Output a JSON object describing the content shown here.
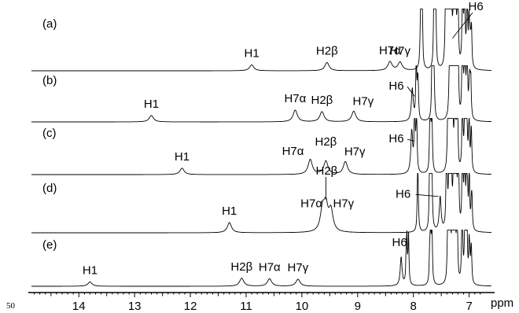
{
  "page_number": "50",
  "chart_data": [
    {
      "type": "line",
      "xlabel": "ppm",
      "x_ticks": [
        14,
        13,
        12,
        11,
        10,
        9,
        8,
        7
      ],
      "xlim": [
        14.85,
        6.6
      ],
      "x_reversed": true,
      "panels": [
        {
          "label": "(a)",
          "peaks": [
            {
              "label": "H1",
              "ppm": 10.9,
              "height": 0.1
            },
            {
              "label": "H2β",
              "ppm": 9.55,
              "height": 0.14
            },
            {
              "label": "H7α",
              "ppm": 8.42,
              "height": 0.15
            },
            {
              "label": "H7γ",
              "ppm": 8.24,
              "height": 0.14
            },
            {
              "label": "H6",
              "ppm": 7.3,
              "height": 0.95
            }
          ]
        },
        {
          "label": "(b)",
          "peaks": [
            {
              "label": "H1",
              "ppm": 12.7,
              "height": 0.12
            },
            {
              "label": "H7α",
              "ppm": 10.12,
              "height": 0.22
            },
            {
              "label": "H2β",
              "ppm": 9.64,
              "height": 0.19
            },
            {
              "label": "H7γ",
              "ppm": 9.07,
              "height": 0.2
            },
            {
              "label": "H6",
              "ppm": 8.02,
              "height": 0.6
            }
          ]
        },
        {
          "label": "(c)",
          "peaks": [
            {
              "label": "H1",
              "ppm": 12.15,
              "height": 0.12
            },
            {
              "label": "H7α",
              "ppm": 9.85,
              "height": 0.28
            },
            {
              "label": "H2β",
              "ppm": 9.57,
              "height": 0.25
            },
            {
              "label": "H7γ",
              "ppm": 9.22,
              "height": 0.24
            },
            {
              "label": "H6",
              "ppm": 8.03,
              "height": 0.78
            }
          ]
        },
        {
          "label": "(d)",
          "peaks": [
            {
              "label": "H1",
              "ppm": 11.3,
              "height": 0.18
            },
            {
              "label": "H7α",
              "ppm": 9.63,
              "height": 0.37
            },
            {
              "label": "H2β",
              "ppm": 9.57,
              "height": 0.42
            },
            {
              "label": "H7γ",
              "ppm": 9.48,
              "height": 0.37
            },
            {
              "label": "H6",
              "ppm": 7.52,
              "height": 0.6
            }
          ]
        },
        {
          "label": "(e)",
          "peaks": [
            {
              "label": "H1",
              "ppm": 13.8,
              "height": 0.08
            },
            {
              "label": "H2β",
              "ppm": 11.08,
              "height": 0.15
            },
            {
              "label": "H7α",
              "ppm": 10.58,
              "height": 0.14
            },
            {
              "label": "H7γ",
              "ppm": 10.07,
              "height": 0.13
            },
            {
              "label": "H6",
              "ppm": 8.22,
              "height": 0.53
            }
          ]
        }
      ]
    }
  ]
}
